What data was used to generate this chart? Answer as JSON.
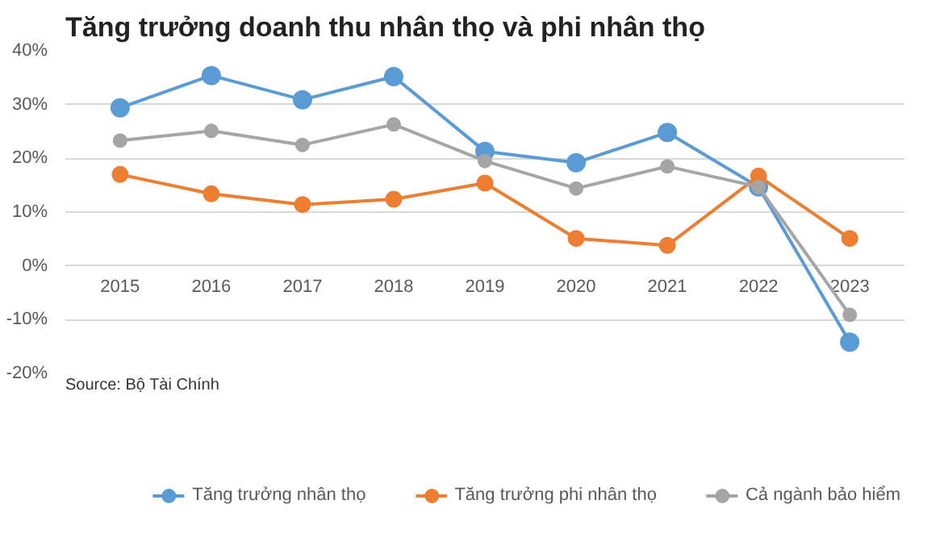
{
  "chart_data": {
    "type": "line",
    "title": "Tăng trưởng doanh thu nhân thọ và phi nhân thọ",
    "categories": [
      "2015",
      "2016",
      "2017",
      "2018",
      "2019",
      "2020",
      "2021",
      "2022",
      "2023"
    ],
    "series": [
      {
        "name": "Tăng trưởng nhân thọ",
        "color": "#5b9bd5",
        "values": [
          29.4,
          35.4,
          30.9,
          35.2,
          21.3,
          19.2,
          24.8,
          14.7,
          -14.2
        ]
      },
      {
        "name": "Tăng trưởng phi nhân thọ",
        "color": "#ed7d31",
        "values": [
          17.0,
          13.4,
          11.4,
          12.4,
          15.4,
          5.1,
          3.8,
          16.7,
          5.1
        ]
      },
      {
        "name": "Cả ngành bảo hiểm",
        "color": "#a5a5a5",
        "values": [
          23.3,
          25.1,
          22.5,
          26.3,
          19.5,
          14.4,
          18.5,
          14.7,
          -9.1
        ]
      }
    ],
    "ylim": [
      -20,
      40
    ],
    "yticks": [
      {
        "value": -20,
        "label": "-20%"
      },
      {
        "value": -10,
        "label": "-10%"
      },
      {
        "value": 0,
        "label": "0%"
      },
      {
        "value": 10,
        "label": "10%"
      },
      {
        "value": 20,
        "label": "20%"
      },
      {
        "value": 30,
        "label": "30%"
      },
      {
        "value": 40,
        "label": "40%"
      }
    ],
    "grid": "y",
    "legend": "bottom",
    "marker": "circle",
    "line_style": "solid",
    "annotations": [
      "Source: Bộ Tài Chính"
    ]
  }
}
